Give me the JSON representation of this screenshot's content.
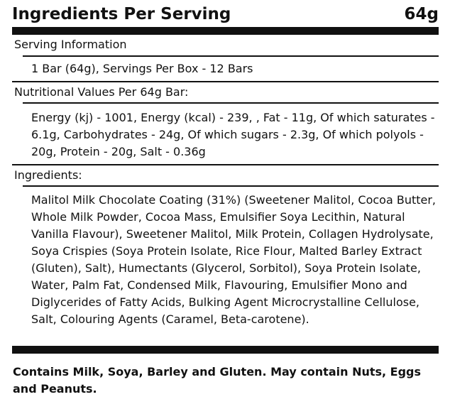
{
  "header": {
    "title": "Ingredients Per Serving",
    "amount": "64g"
  },
  "serving": {
    "label": "Serving Information",
    "text": "1 Bar (64g), Servings Per Box - 12 Bars"
  },
  "nutrition": {
    "label": "Nutritional Values Per 64g Bar:",
    "text": "Energy (kj) - 1001, Energy (kcal) - 239, , Fat - 11g, Of which saturates - 6.1g, Carbohydrates - 24g, Of which sugars - 2.3g, Of which polyols - 20g, Protein - 20g, Salt - 0.36g"
  },
  "ingredients": {
    "label": "Ingredients:",
    "text": "Malitol Milk Chocolate Coating (31%) (Sweetener Malitol, Cocoa Butter, Whole Milk Powder, Cocoa Mass, Emulsifier Soya Lecithin, Natural Vanilla Flavour), Sweetener Malitol, Milk Protein, Collagen Hydrolysate, Soya Crispies (Soya Protein Isolate, Rice Flour, Malted Barley Extract (Gluten), Salt), Humectants (Glycerol, Sorbitol), Soya Protein Isolate, Water, Palm Fat, Condensed Milk, Flavouring, Emulsifier Mono and Diglycerides of Fatty Acids, Bulking Agent Microcrystalline Cellulose, Salt, Colouring Agents (Caramel, Beta-carotene)."
  },
  "allergens": {
    "text": "Contains Milk, Soya, Barley and Gluten. May contain Nuts, Eggs and Peanuts."
  }
}
